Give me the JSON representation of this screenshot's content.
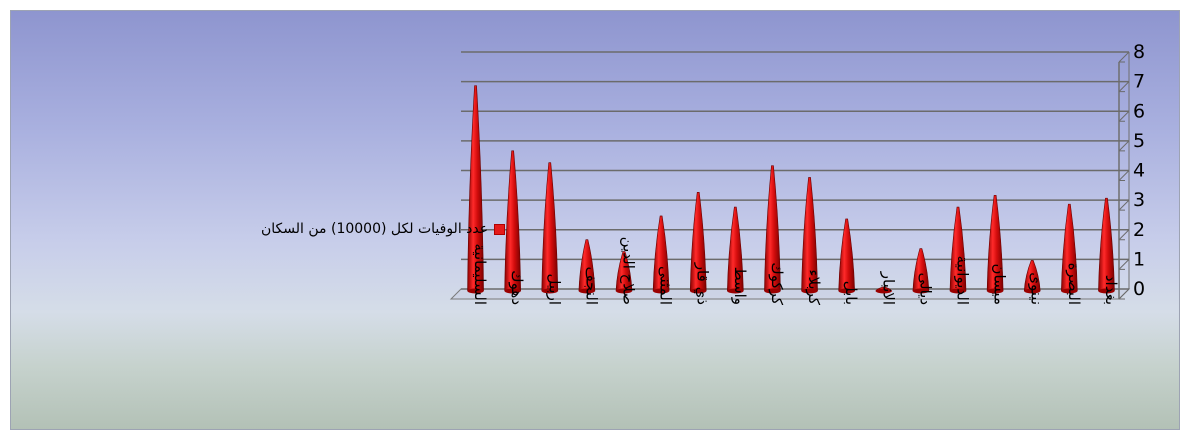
{
  "chart_data": {
    "type": "bar",
    "style": "3d-cone",
    "title": "",
    "xlabel": "",
    "ylabel": "",
    "ylim": [
      0,
      8
    ],
    "yticks": [
      "0",
      "1",
      "2",
      "3",
      "4",
      "5",
      "6",
      "7",
      "8"
    ],
    "y_axis_side": "right",
    "grid": true,
    "legend_position": "left",
    "categories": [
      "السليمانية",
      "دهوك",
      "اربيل",
      "النجف",
      "صلاح الدين",
      "المثنى",
      "ذي قار",
      "واسط",
      "كركوك",
      "كربلاء",
      "بابل",
      "الانبار",
      "ديالى",
      "الديوانية",
      "ميسان",
      "نينوى",
      "البصرة",
      "بغداد"
    ],
    "series": [
      {
        "name": "عدد الوفيات لكل (10000) من السكان",
        "color": "#e51a1a",
        "values": [
          7.0,
          4.8,
          4.4,
          1.8,
          1.4,
          2.6,
          3.4,
          2.9,
          4.3,
          3.9,
          2.5,
          0.2,
          1.5,
          2.9,
          3.3,
          1.1,
          3.0,
          3.2
        ]
      }
    ]
  }
}
